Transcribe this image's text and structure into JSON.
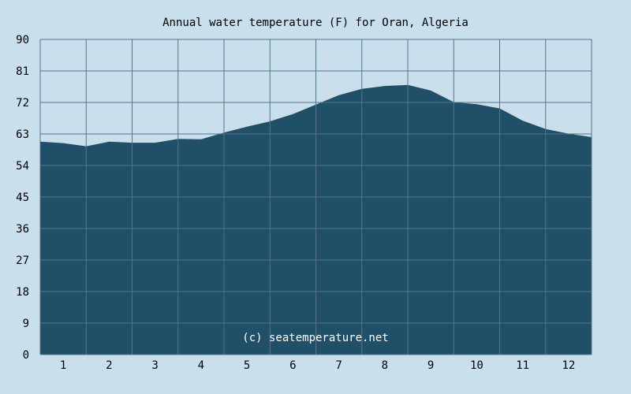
{
  "chart_data": {
    "type": "area",
    "title": "Annual water temperature (F) for Oran, Algeria",
    "watermark": "(c) seatemperature.net",
    "xlabel": "",
    "ylabel": "",
    "x_ticks": [
      "1",
      "2",
      "3",
      "4",
      "5",
      "6",
      "7",
      "8",
      "9",
      "10",
      "11",
      "12"
    ],
    "y_ticks": [
      "0",
      "9",
      "18",
      "27",
      "36",
      "45",
      "54",
      "63",
      "72",
      "81",
      "90"
    ],
    "xlim": [
      0.5,
      12.5
    ],
    "ylim": [
      0,
      90
    ],
    "grid": true,
    "colors": {
      "background": "#c9e0ec",
      "fill": "#1f5068",
      "grid": "#53758a",
      "watermark": "#ffffff"
    },
    "series": [
      {
        "x": [
          0.5,
          1.0,
          1.5,
          2.0,
          2.5,
          3.0,
          3.5,
          4.0,
          4.5,
          5.0,
          5.5,
          6.0,
          6.5,
          7.0,
          7.5,
          8.0,
          8.5,
          9.0,
          9.5,
          10.0,
          10.5,
          11.0,
          11.5,
          12.0,
          12.5
        ],
        "values": [
          60.8,
          60.4,
          59.5,
          60.8,
          60.5,
          60.5,
          61.6,
          61.5,
          63.4,
          65.1,
          66.6,
          68.7,
          71.4,
          74.1,
          75.9,
          76.7,
          77.0,
          75.4,
          72.1,
          71.5,
          70.3,
          66.8,
          64.4,
          63.1,
          62.1
        ]
      }
    ]
  }
}
